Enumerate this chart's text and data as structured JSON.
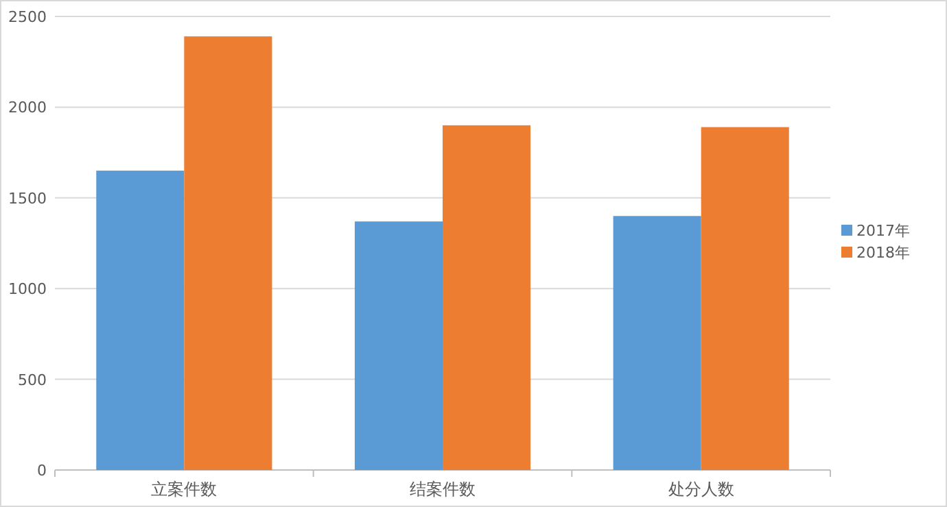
{
  "chart_data": {
    "type": "bar",
    "categories": [
      "立案件数",
      "结案件数",
      "处分人数"
    ],
    "series": [
      {
        "name": "2017年",
        "color": "#5b9bd5",
        "values": [
          1650,
          1370,
          1400
        ]
      },
      {
        "name": "2018年",
        "color": "#ed7d31",
        "values": [
          2390,
          1900,
          1890
        ]
      }
    ],
    "ylim": [
      0,
      2500
    ],
    "yticks": [
      0,
      500,
      1000,
      1500,
      2000,
      2500
    ],
    "grid": "y",
    "legend": "right"
  }
}
